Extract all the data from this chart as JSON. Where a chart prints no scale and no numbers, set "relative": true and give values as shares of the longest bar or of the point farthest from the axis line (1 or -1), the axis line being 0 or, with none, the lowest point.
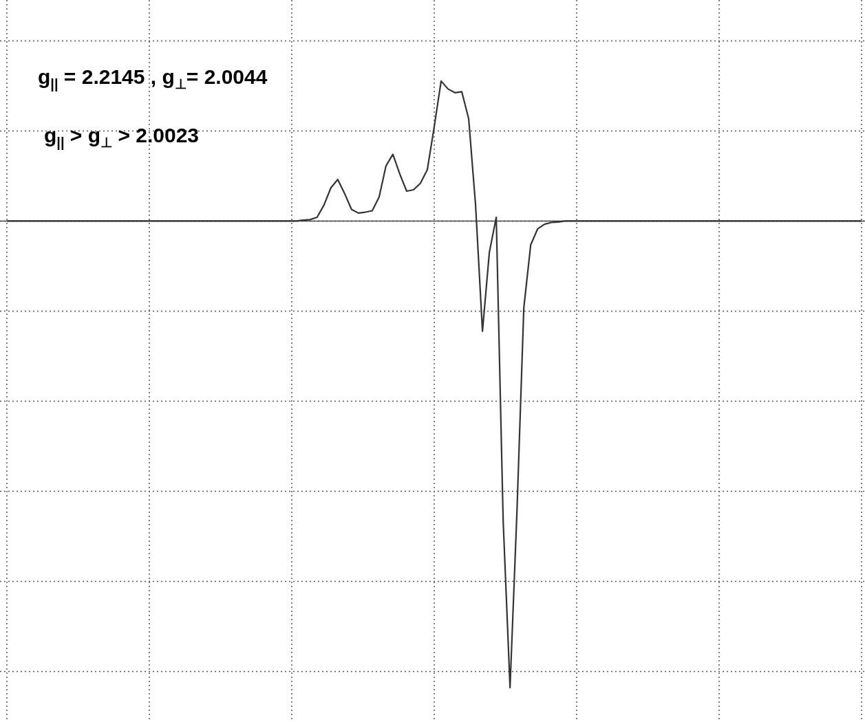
{
  "chart_data": {
    "type": "line",
    "relative": true,
    "grid": true,
    "marker": "none",
    "line_style": "solid",
    "legend": false,
    "tick_labels": false,
    "annotations": [
      "g$_{||}$ = 2.2145 , g$_{⊥}$= 2.0044",
      "g$_{||}$ > g$_{⊥}$ > 2.0023"
    ],
    "categories": [
      null,
      null,
      null,
      null,
      null,
      null,
      null,
      null,
      null,
      null,
      null,
      null,
      null,
      null,
      null,
      null,
      null,
      null,
      null,
      null,
      null,
      null,
      null,
      null,
      null,
      null,
      null,
      null,
      null,
      null,
      null,
      null,
      null,
      null,
      null,
      null,
      null,
      null,
      null,
      null,
      null,
      null,
      null,
      null,
      null,
      null,
      null,
      null,
      null,
      null,
      null,
      null,
      null,
      null,
      null,
      null,
      null,
      null,
      null,
      null,
      null,
      null,
      null,
      null,
      null,
      null,
      null,
      null,
      null,
      null,
      null,
      null,
      null,
      null,
      null,
      null,
      null,
      null,
      null,
      null,
      null,
      null,
      null,
      null,
      null,
      null,
      null,
      null,
      null,
      null,
      null,
      null,
      null,
      null,
      null,
      null,
      null,
      null,
      null,
      null,
      null,
      null,
      null,
      null,
      null,
      null,
      null,
      null,
      null,
      null,
      null,
      null,
      null,
      null,
      null,
      null,
      null,
      null,
      null,
      null,
      null,
      null,
      null,
      null,
      null
    ],
    "series": [
      {
        "color": "#333333",
        "values": [
          0,
          0,
          0,
          0,
          0,
          0,
          0,
          0,
          0,
          0,
          0,
          0,
          0,
          0,
          0,
          0,
          0,
          0,
          0,
          0,
          0,
          0,
          0,
          0,
          0,
          0,
          0,
          0,
          0,
          0,
          0,
          0,
          0,
          0,
          0,
          0,
          0,
          0,
          0,
          0,
          0,
          0,
          0,
          0.002,
          0.003,
          0.008,
          0.034,
          0.071,
          0.089,
          0.059,
          0.025,
          0.017,
          0.019,
          0.022,
          0.051,
          0.118,
          0.143,
          0.101,
          0.064,
          0.067,
          0.081,
          0.11,
          0.202,
          0.3,
          0.283,
          0.275,
          0.277,
          0.219,
          0.034,
          -0.236,
          -0.067,
          0.008,
          -0.641,
          -1,
          -0.624,
          -0.186,
          -0.051,
          -0.017,
          -0.007,
          -0.003,
          -0.002,
          0,
          0,
          0,
          0,
          0,
          0,
          0,
          0,
          0,
          0,
          0,
          0,
          0,
          0,
          0,
          0,
          0,
          0,
          0,
          0,
          0,
          0,
          0,
          0,
          0,
          0,
          0,
          0,
          0,
          0,
          0,
          0,
          0,
          0,
          0,
          0,
          0,
          0,
          0,
          0,
          0,
          0,
          0,
          0
        ]
      }
    ]
  }
}
